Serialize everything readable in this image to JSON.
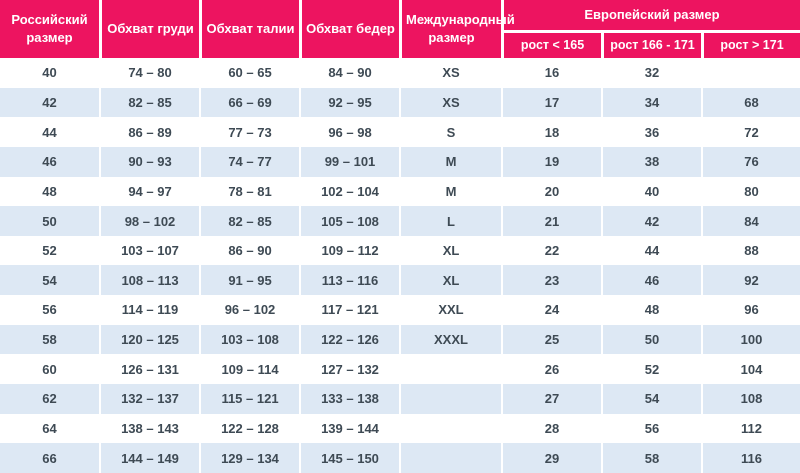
{
  "chart_data": {
    "type": "table",
    "columns": [
      "Российский размер",
      "Обхват груди",
      "Обхват талии",
      "Обхват бедер",
      "Международный размер"
    ],
    "group_header": {
      "label": "Европейский размер",
      "sub_columns": [
        "рост < 165",
        "рост 166 - 171",
        "рост > 171"
      ]
    },
    "rows": [
      [
        "40",
        "74 – 80",
        "60 – 65",
        "84 – 90",
        "XS",
        "16",
        "32",
        ""
      ],
      [
        "42",
        "82 – 85",
        "66 – 69",
        "92 – 95",
        "XS",
        "17",
        "34",
        "68"
      ],
      [
        "44",
        "86 – 89",
        "77 – 73",
        "96 – 98",
        "S",
        "18",
        "36",
        "72"
      ],
      [
        "46",
        "90 – 93",
        "74 – 77",
        "99 – 101",
        "M",
        "19",
        "38",
        "76"
      ],
      [
        "48",
        "94 – 97",
        "78 – 81",
        "102 – 104",
        "M",
        "20",
        "40",
        "80"
      ],
      [
        "50",
        "98 – 102",
        "82 – 85",
        "105 – 108",
        "L",
        "21",
        "42",
        "84"
      ],
      [
        "52",
        "103 – 107",
        "86 – 90",
        "109 – 112",
        "XL",
        "22",
        "44",
        "88"
      ],
      [
        "54",
        "108 – 113",
        "91 – 95",
        "113 – 116",
        "XL",
        "23",
        "46",
        "92"
      ],
      [
        "56",
        "114 – 119",
        "96 – 102",
        "117 – 121",
        "XXL",
        "24",
        "48",
        "96"
      ],
      [
        "58",
        "120 – 125",
        "103 – 108",
        "122 – 126",
        "XXXL",
        "25",
        "50",
        "100"
      ],
      [
        "60",
        "126 – 131",
        "109 – 114",
        "127 – 132",
        "",
        "26",
        "52",
        "104"
      ],
      [
        "62",
        "132 – 137",
        "115 – 121",
        "133 – 138",
        "",
        "27",
        "54",
        "108"
      ],
      [
        "64",
        "138 – 143",
        "122 – 128",
        "139 – 144",
        "",
        "28",
        "56",
        "112"
      ],
      [
        "66",
        "144 – 149",
        "129 – 134",
        "145 – 150",
        "",
        "29",
        "58",
        "116"
      ]
    ],
    "layout": {
      "grid": "alternating-row-stripes",
      "legend": "none"
    }
  },
  "colors": {
    "header_bg": "#ED1460",
    "header_text": "#FFFFFF",
    "row_odd_bg": "#FFFFFF",
    "row_even_bg": "#DDE8F4",
    "body_text": "#3E4A54",
    "separator": "#FFFFFF"
  }
}
